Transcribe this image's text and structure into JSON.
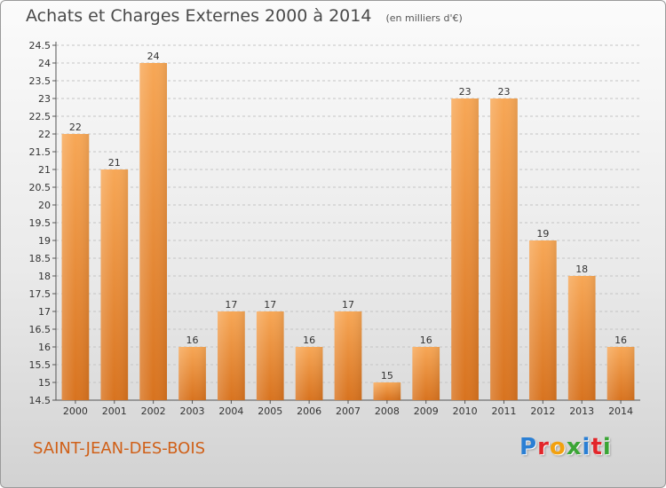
{
  "title": "Achats et Charges Externes 2000 à 2014",
  "unit_note": "(en milliers d'€)",
  "place_name": "SAINT-JEAN-DES-BOIS",
  "logo": {
    "text": "Proxiti",
    "letters": [
      {
        "ch": "P",
        "color": "#2a7fd4"
      },
      {
        "ch": "r",
        "color": "#e2262a"
      },
      {
        "ch": "o",
        "color": "#f2a10f"
      },
      {
        "ch": "x",
        "color": "#3aa535"
      },
      {
        "ch": "i",
        "color": "#2a7fd4"
      },
      {
        "ch": "t",
        "color": "#e2262a"
      },
      {
        "ch": "i",
        "color": "#3aa535"
      }
    ]
  },
  "colors": {
    "bar_top": "#f7a756",
    "bar_bottom": "#d8731f",
    "place": "#d06018",
    "grid": "#c4c4c4"
  },
  "chart_data": {
    "type": "bar",
    "title": "Achats et Charges Externes 2000 à 2014",
    "xlabel": "",
    "ylabel": "",
    "categories": [
      "2000",
      "2001",
      "2002",
      "2003",
      "2004",
      "2005",
      "2006",
      "2007",
      "2008",
      "2009",
      "2010",
      "2011",
      "2012",
      "2013",
      "2014"
    ],
    "values": [
      22,
      21,
      24,
      16,
      17,
      17,
      16,
      17,
      15,
      16,
      23,
      23,
      19,
      18,
      16
    ],
    "ylim": [
      14.5,
      24.5
    ],
    "yticks": [
      "14.5",
      "15",
      "15.5",
      "16",
      "16.5",
      "17",
      "17.5",
      "18",
      "18.5",
      "19",
      "19.5",
      "20",
      "20.5",
      "21",
      "21.5",
      "22",
      "22.5",
      "23",
      "23.5",
      "24",
      "24.5"
    ],
    "grid": true,
    "legend": "none"
  }
}
